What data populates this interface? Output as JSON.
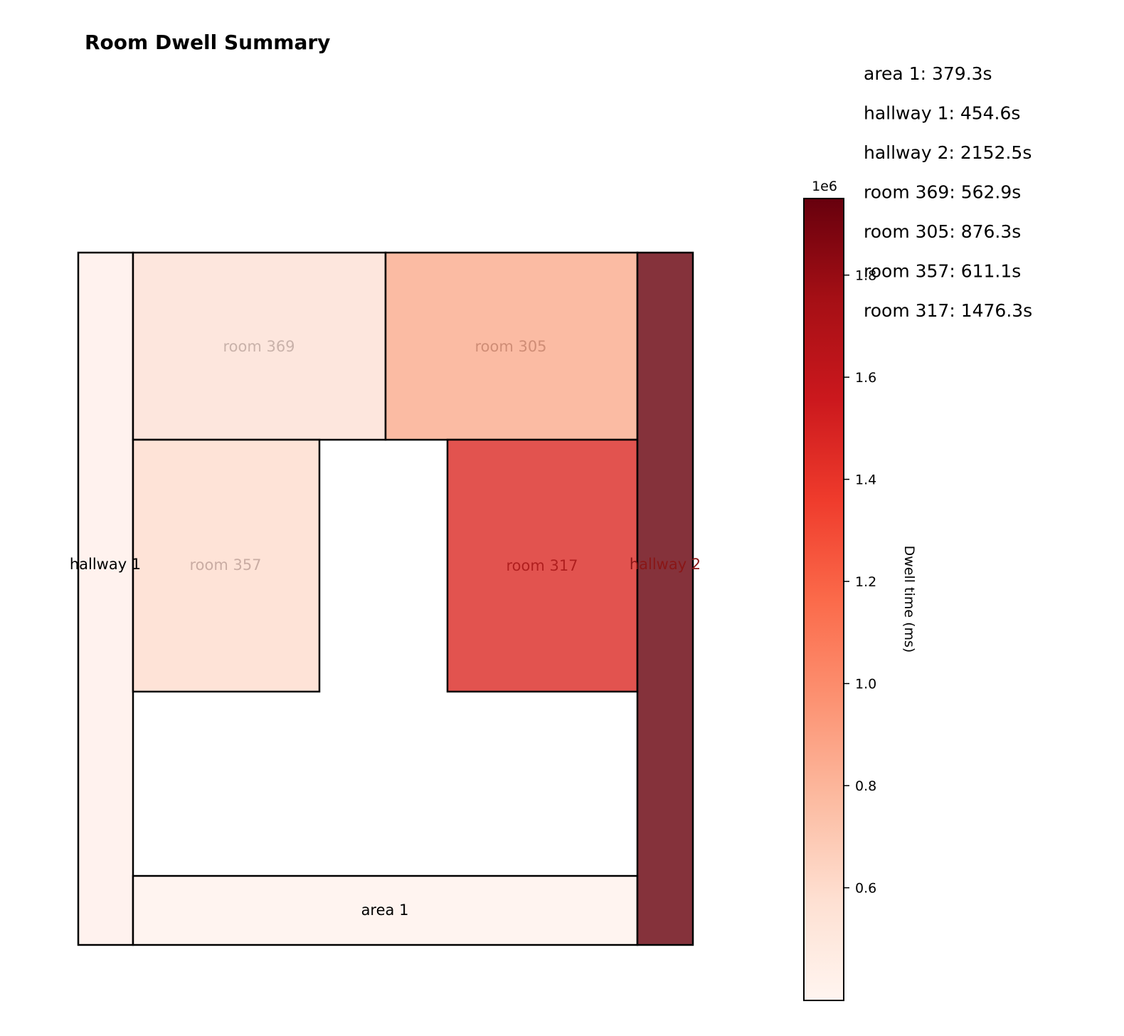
{
  "chart_data": {
    "type": "heatmap",
    "title": "Room Dwell Summary",
    "rooms": [
      {
        "name": "hallway 1",
        "dwell_ms": 454600,
        "label_color": "#000000"
      },
      {
        "name": "room 369",
        "dwell_ms": 562900,
        "label_color": "#c9b2aa"
      },
      {
        "name": "room 305",
        "dwell_ms": 876300,
        "label_color": "#cf8d76"
      },
      {
        "name": "room 357",
        "dwell_ms": 611100,
        "label_color": "#c9aca3"
      },
      {
        "name": "room 317",
        "dwell_ms": 1476300,
        "label_color": "#b01f1f"
      },
      {
        "name": "hallway 2",
        "dwell_ms": 2152500,
        "label_color": "#8a1616"
      },
      {
        "name": "area 1",
        "dwell_ms": 379300,
        "label_color": "#000000"
      }
    ],
    "colorbar": {
      "label": "Dwell time (ms)",
      "scale_label": "1e6",
      "range": [
        0.3793,
        1.95
      ],
      "ticks": [
        0.6,
        0.8,
        1.0,
        1.2,
        1.4,
        1.6,
        1.8
      ],
      "tick_labels": [
        "0.6",
        "0.8",
        "1.0",
        "1.2",
        "1.4",
        "1.6",
        "1.8"
      ],
      "colormap": "Reds"
    },
    "summary_lines": [
      "area 1: 379.3s",
      "hallway 1: 454.6s",
      "hallway 2: 2152.5s",
      "room 369: 562.9s",
      "room 305: 876.3s",
      "room 357: 611.1s",
      "room 317: 1476.3s"
    ],
    "colors": {
      "hallway 1": "#fff2ee",
      "room 369": "#fde6dd",
      "room 305": "#fbbba3",
      "room 357": "#fee3d7",
      "room 317": "#e2534f",
      "hallway 2": "#85323b",
      "area 1": "#fff4f0"
    }
  }
}
